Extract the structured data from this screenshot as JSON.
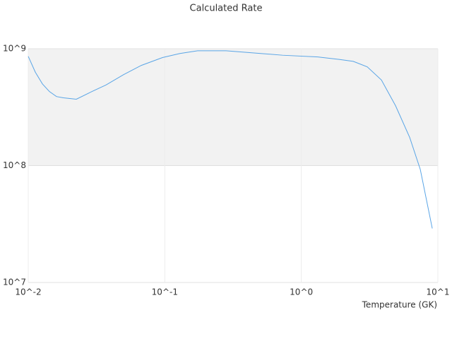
{
  "chart_data": {
    "type": "line",
    "title": "Calculated Rate",
    "x_label": "Temperature (GK)",
    "x": [
      0.01,
      0.01127,
      0.0127,
      0.0143,
      0.0161,
      0.0181,
      0.0225,
      0.0292,
      0.0371,
      0.0499,
      0.0673,
      0.0962,
      0.129,
      0.174,
      0.281,
      0.402,
      0.728,
      1.32,
      1.89,
      2.4,
      3.04,
      3.86,
      4.9,
      6.22,
      7.43,
      9.1
    ],
    "series": [
      {
        "color": "#5aa5e6",
        "values": [
          860000000,
          630000000,
          500000000,
          430000000,
          390000000,
          380000000,
          370000000,
          430000000,
          490000000,
          600000000,
          720000000,
          840000000,
          910000000,
          960000000,
          960000000,
          930000000,
          880000000,
          850000000,
          810000000,
          780000000,
          700000000,
          540000000,
          325000000,
          174000000,
          93000000,
          29000000
        ]
      }
    ],
    "log_x": true,
    "log_y": true,
    "xlim": [
      0.01,
      10
    ],
    "ylim": [
      10000000,
      1000000000
    ],
    "xticks": [
      {
        "value": 0.01,
        "label": "10^-2"
      },
      {
        "value": 0.1,
        "label": "10^-1"
      },
      {
        "value": 1,
        "label": "10^0"
      },
      {
        "value": 10,
        "label": "10^1"
      }
    ],
    "yticks": [
      {
        "value": 10000000,
        "label": "10^7"
      },
      {
        "value": 100000000,
        "label": "10^8"
      },
      {
        "value": 1000000000,
        "label": "10^9"
      }
    ],
    "grid": true,
    "band_color": "#f2f2f2"
  }
}
